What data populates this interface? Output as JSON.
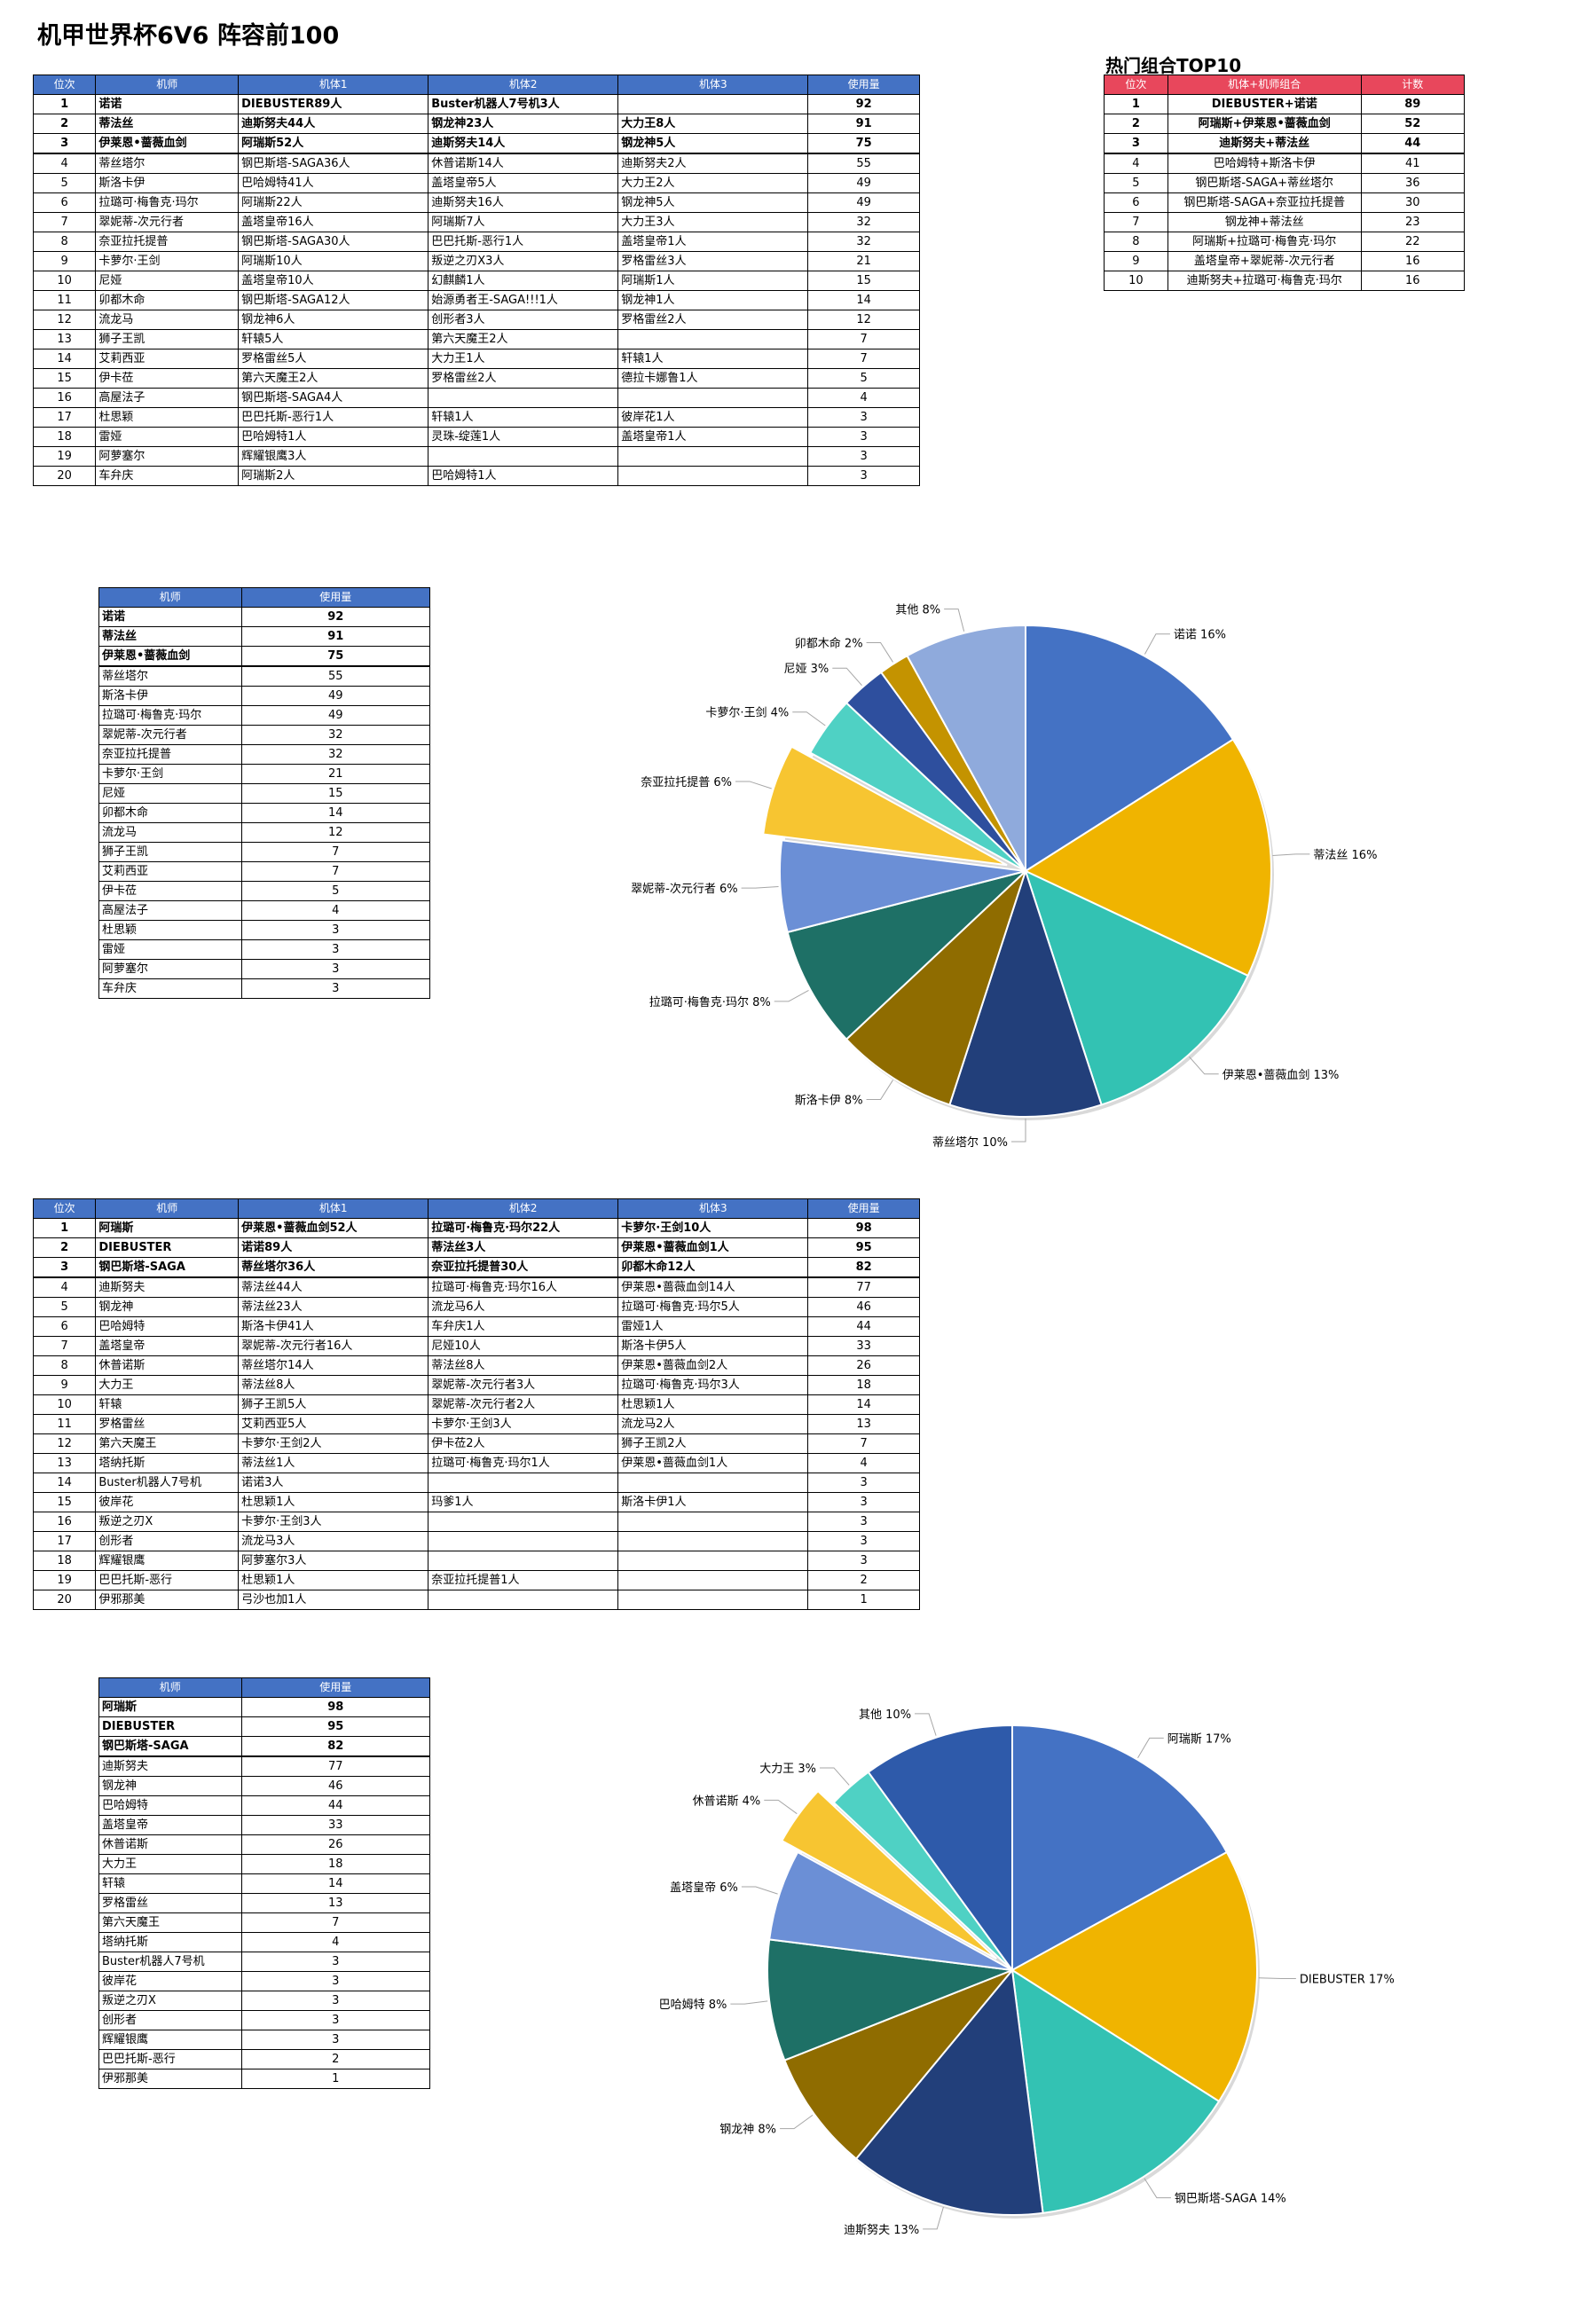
{
  "title": "机甲世界杯6V6 阵容前100",
  "pilot_table": {
    "headers": [
      "位次",
      "机师",
      "机体1",
      "机体2",
      "机体3",
      "使用量"
    ],
    "rows": [
      [
        "1",
        "诺诺",
        "DIEBUSTER89人",
        "Buster机器人7号机3人",
        "",
        "92"
      ],
      [
        "2",
        "蒂法丝",
        "迪斯努夫44人",
        "钢龙神23人",
        "大力王8人",
        "91"
      ],
      [
        "3",
        "伊莱恩•蔷薇血剑",
        "阿瑞斯52人",
        "迪斯努夫14人",
        "钢龙神5人",
        "75"
      ],
      [
        "4",
        "蒂丝塔尔",
        "钢巴斯塔-SAGA36人",
        "休普诺斯14人",
        "迪斯努夫2人",
        "55"
      ],
      [
        "5",
        "斯洛卡伊",
        "巴哈姆特41人",
        "盖塔皇帝5人",
        "大力王2人",
        "49"
      ],
      [
        "6",
        "拉璐可·梅鲁克·玛尔",
        "阿瑞斯22人",
        "迪斯努夫16人",
        "钢龙神5人",
        "49"
      ],
      [
        "7",
        "翠妮蒂-次元行者",
        "盖塔皇帝16人",
        "阿瑞斯7人",
        "大力王3人",
        "32"
      ],
      [
        "8",
        "奈亚拉托提普",
        "钢巴斯塔-SAGA30人",
        "巴巴托斯-恶行1人",
        "盖塔皇帝1人",
        "32"
      ],
      [
        "9",
        "卡萝尔·王剑",
        "阿瑞斯10人",
        "叛逆之刃X3人",
        "罗格雷丝3人",
        "21"
      ],
      [
        "10",
        "尼娅",
        "盖塔皇帝10人",
        "幻麒麟1人",
        "阿瑞斯1人",
        "15"
      ],
      [
        "11",
        "卯都木命",
        "钢巴斯塔-SAGA12人",
        "始源勇者王-SAGA!!!1人",
        "钢龙神1人",
        "14"
      ],
      [
        "12",
        "流龙马",
        "钢龙神6人",
        "创形者3人",
        "罗格雷丝2人",
        "12"
      ],
      [
        "13",
        "狮子王凯",
        "轩辕5人",
        "第六天魔王2人",
        "",
        "7"
      ],
      [
        "14",
        "艾莉西亚",
        "罗格雷丝5人",
        "大力王1人",
        "轩辕1人",
        "7"
      ],
      [
        "15",
        "伊卡莅",
        "第六天魔王2人",
        "罗格雷丝2人",
        "德拉卡娜鲁1人",
        "5"
      ],
      [
        "16",
        "高屋法子",
        "钢巴斯塔-SAGA4人",
        "",
        "",
        "4"
      ],
      [
        "17",
        "杜思颖",
        "巴巴托斯-恶行1人",
        "轩辕1人",
        "彼岸花1人",
        "3"
      ],
      [
        "18",
        "雷娅",
        "巴哈姆特1人",
        "灵珠-绽莲1人",
        "盖塔皇帝1人",
        "3"
      ],
      [
        "19",
        "阿萝塞尔",
        "辉耀银鹰3人",
        "",
        "",
        "3"
      ],
      [
        "20",
        "车弁庆",
        "阿瑞斯2人",
        "巴哈姆特1人",
        "",
        "3"
      ]
    ]
  },
  "hot_combos": {
    "title": "热门组合TOP10",
    "headers": [
      "位次",
      "机体+机师组合",
      "计数"
    ],
    "rows": [
      [
        "1",
        "DIEBUSTER+诺诺",
        "89"
      ],
      [
        "2",
        "阿瑞斯+伊莱恩•蔷薇血剑",
        "52"
      ],
      [
        "3",
        "迪斯努夫+蒂法丝",
        "44"
      ],
      [
        "4",
        "巴哈姆特+斯洛卡伊",
        "41"
      ],
      [
        "5",
        "钢巴斯塔-SAGA+蒂丝塔尔",
        "36"
      ],
      [
        "6",
        "钢巴斯塔-SAGA+奈亚拉托提普",
        "30"
      ],
      [
        "7",
        "钢龙神+蒂法丝",
        "23"
      ],
      [
        "8",
        "阿瑞斯+拉璐可·梅鲁克·玛尔",
        "22"
      ],
      [
        "9",
        "盖塔皇帝+翠妮蒂-次元行者",
        "16"
      ],
      [
        "10",
        "迪斯努夫+拉璐可·梅鲁克·玛尔",
        "16"
      ]
    ]
  },
  "pilot_usage": {
    "headers": [
      "机师",
      "使用量"
    ],
    "rows": [
      [
        "诺诺",
        "92"
      ],
      [
        "蒂法丝",
        "91"
      ],
      [
        "伊莱恩•蔷薇血剑",
        "75"
      ],
      [
        "蒂丝塔尔",
        "55"
      ],
      [
        "斯洛卡伊",
        "49"
      ],
      [
        "拉璐可·梅鲁克·玛尔",
        "49"
      ],
      [
        "翠妮蒂-次元行者",
        "32"
      ],
      [
        "奈亚拉托提普",
        "32"
      ],
      [
        "卡萝尔·王剑",
        "21"
      ],
      [
        "尼娅",
        "15"
      ],
      [
        "卯都木命",
        "14"
      ],
      [
        "流龙马",
        "12"
      ],
      [
        "狮子王凯",
        "7"
      ],
      [
        "艾莉西亚",
        "7"
      ],
      [
        "伊卡莅",
        "5"
      ],
      [
        "高屋法子",
        "4"
      ],
      [
        "杜思颖",
        "3"
      ],
      [
        "雷娅",
        "3"
      ],
      [
        "阿萝塞尔",
        "3"
      ],
      [
        "车弁庆",
        "3"
      ]
    ]
  },
  "mech_table": {
    "headers": [
      "位次",
      "机师",
      "机体1",
      "机体2",
      "机体3",
      "使用量"
    ],
    "rows": [
      [
        "1",
        "阿瑞斯",
        "伊莱恩•蔷薇血剑52人",
        "拉璐可·梅鲁克·玛尔22人",
        "卡萝尔·王剑10人",
        "98"
      ],
      [
        "2",
        "DIEBUSTER",
        "诺诺89人",
        "蒂法丝3人",
        "伊莱恩•蔷薇血剑1人",
        "95"
      ],
      [
        "3",
        "钢巴斯塔-SAGA",
        "蒂丝塔尔36人",
        "奈亚拉托提普30人",
        "卯都木命12人",
        "82"
      ],
      [
        "4",
        "迪斯努夫",
        "蒂法丝44人",
        "拉璐可·梅鲁克·玛尔16人",
        "伊莱恩•蔷薇血剑14人",
        "77"
      ],
      [
        "5",
        "钢龙神",
        "蒂法丝23人",
        "流龙马6人",
        "拉璐可·梅鲁克·玛尔5人",
        "46"
      ],
      [
        "6",
        "巴哈姆特",
        "斯洛卡伊41人",
        "车弁庆1人",
        "雷娅1人",
        "44"
      ],
      [
        "7",
        "盖塔皇帝",
        "翠妮蒂-次元行者16人",
        "尼娅10人",
        "斯洛卡伊5人",
        "33"
      ],
      [
        "8",
        "休普诺斯",
        "蒂丝塔尔14人",
        "蒂法丝8人",
        "伊莱恩•蔷薇血剑2人",
        "26"
      ],
      [
        "9",
        "大力王",
        "蒂法丝8人",
        "翠妮蒂-次元行者3人",
        "拉璐可·梅鲁克·玛尔3人",
        "18"
      ],
      [
        "10",
        "轩辕",
        "狮子王凯5人",
        "翠妮蒂-次元行者2人",
        "杜思颖1人",
        "14"
      ],
      [
        "11",
        "罗格雷丝",
        "艾莉西亚5人",
        "卡萝尔·王剑3人",
        "流龙马2人",
        "13"
      ],
      [
        "12",
        "第六天魔王",
        "卡萝尔·王剑2人",
        "伊卡莅2人",
        "狮子王凯2人",
        "7"
      ],
      [
        "13",
        "塔纳托斯",
        "蒂法丝1人",
        "拉璐可·梅鲁克·玛尔1人",
        "伊莱恩•蔷薇血剑1人",
        "4"
      ],
      [
        "14",
        "Buster机器人7号机",
        "诺诺3人",
        "",
        "",
        "3"
      ],
      [
        "15",
        "彼岸花",
        "杜思颖1人",
        "玛爹1人",
        "斯洛卡伊1人",
        "3"
      ],
      [
        "16",
        "叛逆之刃X",
        "卡萝尔·王剑3人",
        "",
        "",
        "3"
      ],
      [
        "17",
        "创形者",
        "流龙马3人",
        "",
        "",
        "3"
      ],
      [
        "18",
        "辉耀银鹰",
        "阿萝塞尔3人",
        "",
        "",
        "3"
      ],
      [
        "19",
        "巴巴托斯-恶行",
        "杜思颖1人",
        "奈亚拉托提普1人",
        "",
        "2"
      ],
      [
        "20",
        "伊邪那美",
        "弓沙也加1人",
        "",
        "",
        "1"
      ]
    ]
  },
  "mech_usage": {
    "headers": [
      "机师",
      "使用量"
    ],
    "rows": [
      [
        "阿瑞斯",
        "98"
      ],
      [
        "DIEBUSTER",
        "95"
      ],
      [
        "钢巴斯塔-SAGA",
        "82"
      ],
      [
        "迪斯努夫",
        "77"
      ],
      [
        "钢龙神",
        "46"
      ],
      [
        "巴哈姆特",
        "44"
      ],
      [
        "盖塔皇帝",
        "33"
      ],
      [
        "休普诺斯",
        "26"
      ],
      [
        "大力王",
        "18"
      ],
      [
        "轩辕",
        "14"
      ],
      [
        "罗格雷丝",
        "13"
      ],
      [
        "第六天魔王",
        "7"
      ],
      [
        "塔纳托斯",
        "4"
      ],
      [
        "Buster机器人7号机",
        "3"
      ],
      [
        "彼岸花",
        "3"
      ],
      [
        "叛逆之刃X",
        "3"
      ],
      [
        "创形者",
        "3"
      ],
      [
        "辉耀银鹰",
        "3"
      ],
      [
        "巴巴托斯-恶行",
        "2"
      ],
      [
        "伊邪那美",
        "1"
      ]
    ]
  },
  "chart_data": [
    {
      "type": "pie",
      "title": "",
      "slices": [
        {
          "label": "诺诺 16%",
          "value": 16,
          "color": "#4472c4"
        },
        {
          "label": "蒂法丝 16%",
          "value": 16,
          "color": "#f0b400"
        },
        {
          "label": "伊莱恩•蔷薇血剑 13%",
          "value": 13,
          "color": "#33c2b3"
        },
        {
          "label": "蒂丝塔尔 10%",
          "value": 10,
          "color": "#223f7a"
        },
        {
          "label": "斯洛卡伊 8%",
          "value": 8,
          "color": "#8f6c00"
        },
        {
          "label": "拉璐可·梅鲁克·玛尔 8%",
          "value": 8,
          "color": "#1e7066"
        },
        {
          "label": "翠妮蒂-次元行者 6%",
          "value": 6,
          "color": "#6b8fd6"
        },
        {
          "label": "奈亚拉托提普 6%",
          "value": 6,
          "color": "#f7c531",
          "exploded": true
        },
        {
          "label": "卡萝尔·王剑 4%",
          "value": 4,
          "color": "#4fd1c4"
        },
        {
          "label": "尼娅 3%",
          "value": 3,
          "color": "#2e4f9e"
        },
        {
          "label": "卯都木命 2%",
          "value": 2,
          "color": "#c49300"
        },
        {
          "label": "其他 8%",
          "value": 8,
          "color": "#8faadc"
        }
      ]
    },
    {
      "type": "pie",
      "title": "",
      "slices": [
        {
          "label": "阿瑞斯 17%",
          "value": 17,
          "color": "#4472c4"
        },
        {
          "label": "DIEBUSTER 17%",
          "value": 17,
          "color": "#f0b400"
        },
        {
          "label": "钢巴斯塔-SAGA 14%",
          "value": 14,
          "color": "#33c2b3"
        },
        {
          "label": "迪斯努夫 13%",
          "value": 13,
          "color": "#223f7a"
        },
        {
          "label": "钢龙神 8%",
          "value": 8,
          "color": "#8f6c00"
        },
        {
          "label": "巴哈姆特 8%",
          "value": 8,
          "color": "#1e7066"
        },
        {
          "label": "盖塔皇帝 6%",
          "value": 6,
          "color": "#6b8fd6"
        },
        {
          "label": "休普诺斯 4%",
          "value": 4,
          "color": "#f7c531",
          "exploded": true
        },
        {
          "label": "大力王 3%",
          "value": 3,
          "color": "#4fd1c4"
        },
        {
          "label": "其他 10%",
          "value": 10,
          "color": "#2e5aaa"
        }
      ]
    }
  ]
}
